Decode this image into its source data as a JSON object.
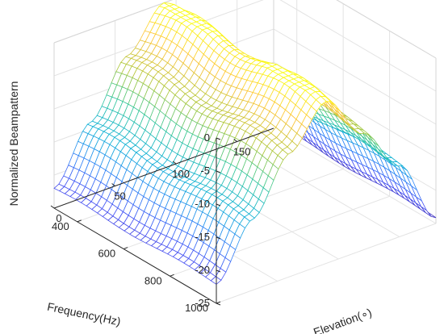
{
  "chart_data": {
    "type": "surface",
    "title": "",
    "xlabel": "Elevation(∘)",
    "ylabel": "Frequency(Hz)",
    "zlabel": "Normalized Beampattern",
    "xlim": [
      0,
      180
    ],
    "ylim": [
      300,
      1000
    ],
    "zlim": [
      -25,
      0
    ],
    "x_ticks": [
      "0",
      "50",
      "100",
      "150"
    ],
    "y_ticks": [
      "400",
      "600",
      "800",
      "1000"
    ],
    "z_ticks": [
      "0",
      "-5",
      "-10",
      "-15",
      "-20",
      "-25"
    ],
    "x_tick_values": [
      0,
      50,
      100,
      150
    ],
    "y_tick_values": [
      400,
      600,
      800,
      1000
    ],
    "z_tick_values": [
      0,
      -5,
      -10,
      -15,
      -20,
      -25
    ],
    "grid": true,
    "colormap": "parula",
    "peak_elevation": 90,
    "surface_samples": {
      "elevation": [
        0,
        30,
        60,
        90,
        120,
        150,
        180
      ],
      "normalized_beampattern": [
        -22,
        -14,
        -6,
        0,
        -7,
        -14,
        -24
      ]
    }
  }
}
